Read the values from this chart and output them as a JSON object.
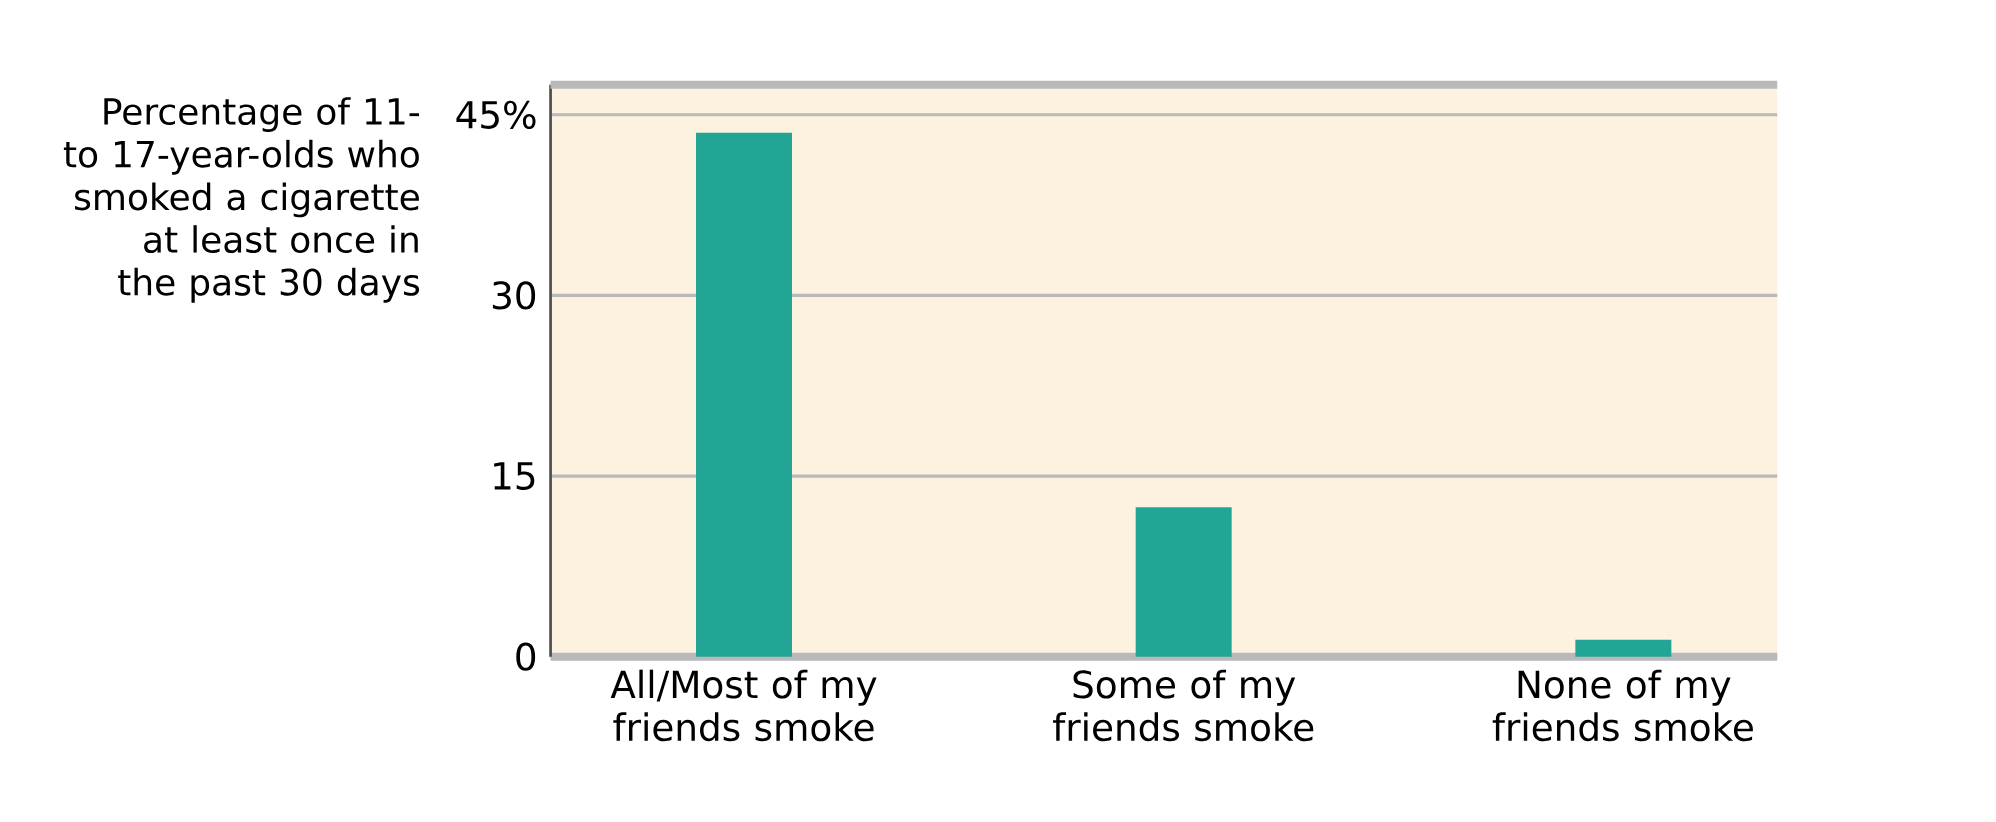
{
  "chart_data": {
    "type": "bar",
    "ylabel": "Percentage of 11- to 17-year-olds who smoked a cigarette at least once in the past 30 days",
    "categories": [
      "All/Most of my friends smoke",
      "Some of my friends smoke",
      "None of my friends smoke"
    ],
    "values": [
      43.5,
      12.4,
      1.4
    ],
    "color": "#23a596",
    "ylim": [
      0,
      47.5
    ],
    "yticks": [
      0,
      15,
      30,
      {
        "value": 45,
        "label": "45%"
      }
    ],
    "grid": "y"
  }
}
